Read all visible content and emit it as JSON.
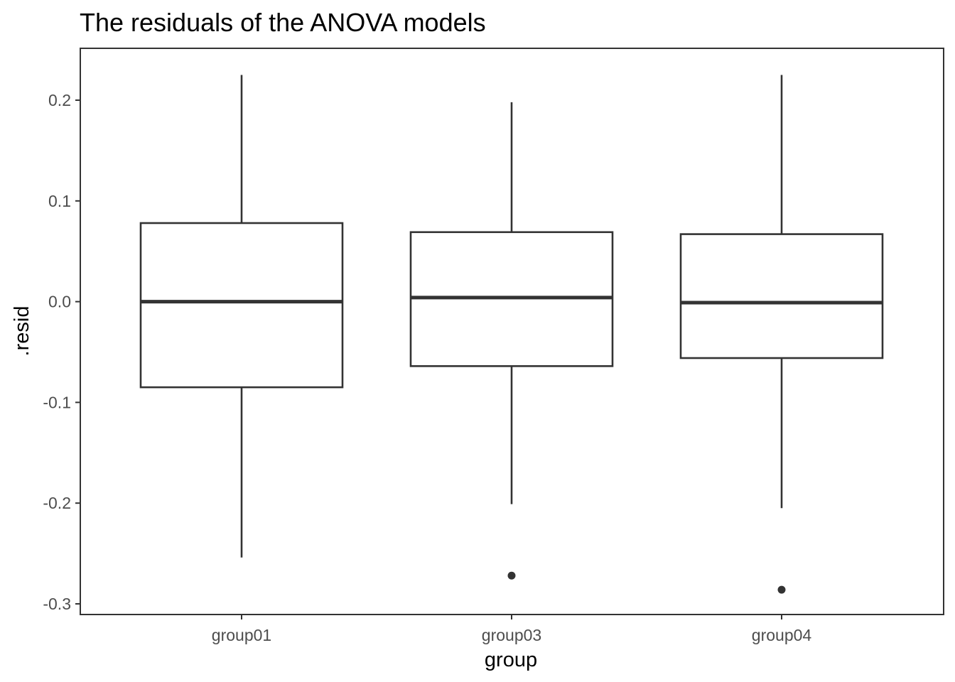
{
  "chart_data": {
    "type": "boxplot",
    "title": "The residuals of the ANOVA models",
    "xlabel": "group",
    "ylabel": ".resid",
    "categories": [
      "group01",
      "group03",
      "group04"
    ],
    "ylim": [
      -0.31,
      0.25
    ],
    "yticks": [
      -0.3,
      -0.2,
      -0.1,
      0.0,
      0.1,
      0.2
    ],
    "ytick_labels": [
      "-0.3",
      "-0.2",
      "-0.1",
      "0.0",
      "0.1",
      "0.2"
    ],
    "boxes": [
      {
        "group": "group01",
        "lower_whisker": -0.254,
        "q1": -0.085,
        "median": 0.0,
        "q3": 0.078,
        "upper_whisker": 0.225,
        "outliers": []
      },
      {
        "group": "group03",
        "lower_whisker": -0.201,
        "q1": -0.064,
        "median": 0.004,
        "q3": 0.069,
        "upper_whisker": 0.198,
        "outliers": [
          -0.272
        ]
      },
      {
        "group": "group04",
        "lower_whisker": -0.205,
        "q1": -0.056,
        "median": -0.001,
        "q3": 0.067,
        "upper_whisker": 0.225,
        "outliers": [
          -0.286
        ]
      }
    ],
    "grid": false,
    "colors": {
      "line": "#333333",
      "panel_border": "#333333",
      "tick_text": "#4d4d4d",
      "background": "#ffffff"
    }
  }
}
